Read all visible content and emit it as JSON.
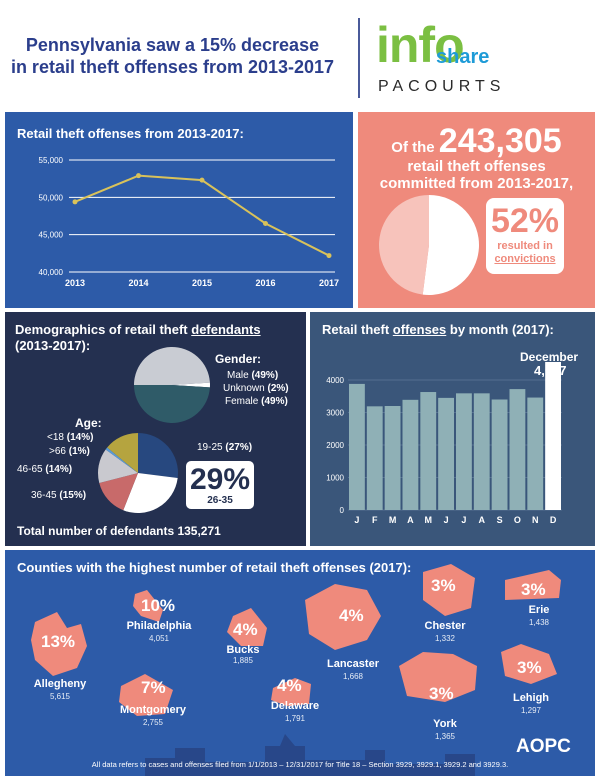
{
  "header": {
    "headline_line1": "Pennsylvania saw a 15% decrease",
    "headline_line2": "in retail theft offenses from 2013-2017",
    "logo_info": "info",
    "logo_share": "share",
    "logo_pacourts": "PACOURTS"
  },
  "line_panel": {
    "title": "Retail theft offenses from 2013-2017:"
  },
  "totals_panel": {
    "prefix": "Of the",
    "total": "243,305",
    "line2": "retail theft offenses",
    "line3": "committed from 2013-2017,",
    "pct": "52%",
    "pct_sub1": "resulted in",
    "pct_sub2": "convictions"
  },
  "demo_panel": {
    "title_a": "Demographics of retail theft ",
    "title_b": "defendants",
    "title_c": "(2013-2017):",
    "gender_title": "Gender:",
    "gender_labels": [
      {
        "name": "Male",
        "pct": "(49%)"
      },
      {
        "name": "Unknown",
        "pct": "(2%)"
      },
      {
        "name": "Female",
        "pct": "(49%)"
      }
    ],
    "age_title": "Age:",
    "age_labels": {
      "lt18": {
        "name": "<18",
        "pct": "(14%)"
      },
      "gt66": {
        "name": ">66",
        "pct": "(1%)"
      },
      "a4665": {
        "name": "46-65",
        "pct": "(14%)"
      },
      "a3645": {
        "name": "36-45",
        "pct": "(15%)"
      },
      "a1925": {
        "name": "19-25",
        "pct": "(27%)"
      }
    },
    "highlight_pct": "29%",
    "highlight_range": "26-35",
    "total_line": "Total number of defendants 135,271"
  },
  "month_panel": {
    "title_a": "Retail theft ",
    "title_b": "offenses",
    "title_c": " by month (2017):",
    "callout_label": "December",
    "callout_value": "4,027"
  },
  "county_panel": {
    "title": "Counties with the highest number of retail theft offenses (2017):",
    "counties": [
      {
        "name": "Allegheny",
        "pct": "13%",
        "value": "5,615"
      },
      {
        "name": "Philadelphia",
        "pct": "10%",
        "value": "4,051"
      },
      {
        "name": "Montgomery",
        "pct": "7%",
        "value": "2,755"
      },
      {
        "name": "Bucks",
        "pct": "4%",
        "value": "1,885"
      },
      {
        "name": "Delaware",
        "pct": "4%",
        "value": "1,791"
      },
      {
        "name": "Lancaster",
        "pct": "4%",
        "value": "1,668"
      },
      {
        "name": "Chester",
        "pct": "3%",
        "value": "1,332"
      },
      {
        "name": "York",
        "pct": "3%",
        "value": "1,365"
      },
      {
        "name": "Erie",
        "pct": "3%",
        "value": "1,438"
      },
      {
        "name": "Lehigh",
        "pct": "3%",
        "value": "1,297"
      }
    ]
  },
  "footer": {
    "note": "All data refers to cases and offenses filed from 1/1/2013 – 12/31/2017 for Title 18 – Section 3929, 3929.1, 3929.2 and 3929.3.",
    "brand": "AOPC"
  },
  "colors": {
    "navy": "#2b3e8c",
    "blue_panel": "#2d5ba8",
    "salmon": "#ef8a7c",
    "line_yellow": "#d9c25a",
    "teal_dark": "#2f5b68",
    "bar_fill": "#8fb0b6"
  },
  "chart_data": [
    {
      "type": "line",
      "title": "Retail theft offenses from 2013-2017:",
      "x": [
        "2013",
        "2014",
        "2015",
        "2016",
        "2017"
      ],
      "values": [
        49400,
        52900,
        52300,
        46500,
        42200
      ],
      "ylim": [
        40000,
        55000
      ],
      "yticks": [
        40000,
        45000,
        50000,
        55000
      ],
      "ytick_labels": [
        "40,000",
        "45,000",
        "50,000",
        "55,000"
      ],
      "grid": true
    },
    {
      "type": "pie",
      "title": "52% resulted in convictions",
      "labels": [
        "convictions",
        "other"
      ],
      "values": [
        52,
        48
      ],
      "colors": [
        "#ffffff",
        "#f7c3bb"
      ]
    },
    {
      "type": "pie",
      "title": "Gender:",
      "labels": [
        "Male",
        "Unknown",
        "Female"
      ],
      "values": [
        49,
        2,
        49
      ],
      "colors": [
        "#c9ccd3",
        "#ffffff",
        "#2f5b68"
      ]
    },
    {
      "type": "pie",
      "title": "Age:",
      "labels": [
        "19-25",
        "26-35",
        "36-45",
        "46-65",
        ">66",
        "<18"
      ],
      "values": [
        27,
        29,
        15,
        14,
        1,
        14
      ],
      "colors": [
        "#27487f",
        "#ffffff",
        "#c86a6a",
        "#c9c9cf",
        "#5b9bd5",
        "#b5a43f"
      ]
    },
    {
      "type": "bar",
      "title": "Retail theft offenses by month (2017):",
      "categories": [
        "J",
        "F",
        "M",
        "A",
        "M",
        "J",
        "J",
        "A",
        "S",
        "O",
        "N",
        "D"
      ],
      "values": [
        3880,
        3190,
        3200,
        3390,
        3630,
        3450,
        3590,
        3590,
        3400,
        3720,
        3460,
        4027
      ],
      "ylim": [
        0,
        4000
      ],
      "yticks": [
        0,
        1000,
        2000,
        3000,
        4000
      ],
      "highlight_index": 11
    }
  ]
}
